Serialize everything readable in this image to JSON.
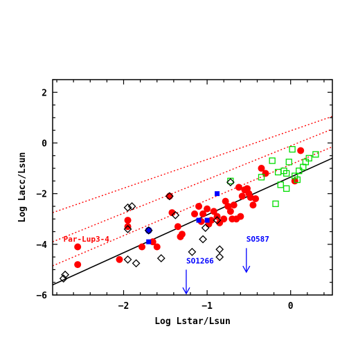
{
  "chart_data": {
    "type": "scatter",
    "title": "",
    "xlabel": "Log Lstar/Lsun",
    "ylabel": "Log Lacc/Lsun",
    "xlim": [
      -2.85,
      0.5
    ],
    "ylim": [
      -6,
      2.5
    ],
    "x_ticks": [
      -2,
      -1,
      0
    ],
    "y_ticks": [
      -6,
      -4,
      -2,
      0,
      2
    ],
    "x_tick_labels": [
      "−2",
      "−1",
      "0"
    ],
    "y_tick_labels": [
      "−6",
      "−4",
      "−2",
      "0",
      "2"
    ],
    "grid": false,
    "colors": {
      "red_filled": "#ff0000",
      "blue_square": "#0000ff",
      "green_open": "#00dd00",
      "black_diamond": "#000000",
      "fit_line": "#000000",
      "dotted": "#ff0000",
      "annotation_red": "#ff0000",
      "annotation_blue": "#0000ff"
    },
    "lines": [
      {
        "style": "solid",
        "points": [
          [
            -2.85,
            -5.6
          ],
          [
            0.5,
            -0.6
          ]
        ]
      },
      {
        "style": "dotted",
        "points": [
          [
            -2.85,
            -4.85
          ],
          [
            0.5,
            -0.15
          ]
        ]
      },
      {
        "style": "dotted",
        "points": [
          [
            -2.85,
            -3.9
          ],
          [
            0.5,
            0.55
          ]
        ]
      },
      {
        "style": "dotted",
        "points": [
          [
            -2.85,
            -2.75
          ],
          [
            0.5,
            1.05
          ]
        ]
      }
    ],
    "series": [
      {
        "marker": "filled-circle",
        "color": "#ff0000",
        "points": [
          [
            -2.55,
            -4.1
          ],
          [
            -2.55,
            -4.8
          ],
          [
            -2.05,
            -4.6
          ],
          [
            -1.95,
            -3.05
          ],
          [
            -1.95,
            -3.3
          ],
          [
            -1.78,
            -4.1
          ],
          [
            -1.65,
            -3.9
          ],
          [
            -1.6,
            -4.1
          ],
          [
            -1.45,
            -2.1
          ],
          [
            -1.35,
            -3.3
          ],
          [
            -1.32,
            -3.7
          ],
          [
            -1.3,
            -3.6
          ],
          [
            -1.15,
            -2.8
          ],
          [
            -1.1,
            -2.5
          ],
          [
            -1.07,
            -3.1
          ],
          [
            -1.05,
            -2.8
          ],
          [
            -1.0,
            -2.6
          ],
          [
            -0.98,
            -3.2
          ],
          [
            -0.95,
            -3.05
          ],
          [
            -0.92,
            -2.7
          ],
          [
            -0.88,
            -2.9
          ],
          [
            -0.85,
            -3.15
          ],
          [
            -0.8,
            -3.0
          ],
          [
            -0.78,
            -2.3
          ],
          [
            -0.75,
            -2.5
          ],
          [
            -0.72,
            -2.7
          ],
          [
            -0.7,
            -3.0
          ],
          [
            -0.68,
            -2.45
          ],
          [
            -0.65,
            -3.0
          ],
          [
            -0.62,
            -1.75
          ],
          [
            -0.6,
            -2.9
          ],
          [
            -0.55,
            -1.85
          ],
          [
            -0.5,
            -2.0
          ],
          [
            -0.48,
            -2.15
          ],
          [
            -0.45,
            -2.45
          ],
          [
            -0.42,
            -2.2
          ],
          [
            -0.35,
            -1.0
          ],
          [
            -0.3,
            -1.2
          ],
          [
            0.05,
            -1.5
          ],
          [
            0.12,
            -0.3
          ],
          [
            -0.58,
            -2.1
          ],
          [
            -0.52,
            -1.8
          ],
          [
            -1.42,
            -2.75
          ]
        ]
      },
      {
        "marker": "filled-square",
        "color": "#0000ff",
        "points": [
          [
            -1.7,
            -3.9
          ],
          [
            -1.1,
            -3.05
          ],
          [
            -0.88,
            -2.0
          ],
          [
            -1.0,
            -3.05
          ]
        ]
      },
      {
        "marker": "filled-circle",
        "color": "#0000ff",
        "points": [
          [
            -1.7,
            -3.45
          ]
        ]
      },
      {
        "marker": "open-square",
        "color": "#00dd00",
        "points": [
          [
            -0.72,
            -1.5
          ],
          [
            -0.35,
            -1.35
          ],
          [
            -0.22,
            -0.7
          ],
          [
            -0.18,
            -2.4
          ],
          [
            -0.15,
            -1.15
          ],
          [
            -0.12,
            -1.65
          ],
          [
            -0.08,
            -1.1
          ],
          [
            -0.05,
            -1.2
          ],
          [
            -0.05,
            -1.8
          ],
          [
            -0.02,
            -0.75
          ],
          [
            0.02,
            -0.25
          ],
          [
            0.08,
            -1.45
          ],
          [
            0.1,
            -1.1
          ],
          [
            0.15,
            -0.95
          ],
          [
            0.18,
            -0.75
          ],
          [
            0.22,
            -0.6
          ],
          [
            0.3,
            -0.45
          ],
          [
            0.05,
            -1.3
          ]
        ]
      },
      {
        "marker": "open-diamond",
        "color": "#000000",
        "points": [
          [
            -2.7,
            -5.2
          ],
          [
            -2.72,
            -5.35
          ],
          [
            -1.95,
            -2.55
          ],
          [
            -1.9,
            -2.5
          ],
          [
            -1.95,
            -3.4
          ],
          [
            -1.95,
            -4.6
          ],
          [
            -1.85,
            -4.75
          ],
          [
            -1.7,
            -3.45
          ],
          [
            -1.55,
            -4.55
          ],
          [
            -1.45,
            -2.1
          ],
          [
            -1.38,
            -2.85
          ],
          [
            -1.18,
            -4.3
          ],
          [
            -1.05,
            -3.8
          ],
          [
            -1.02,
            -3.35
          ],
          [
            -0.85,
            -4.2
          ],
          [
            -0.85,
            -4.5
          ],
          [
            -0.72,
            -1.55
          ],
          [
            -0.88,
            -3.05
          ]
        ]
      }
    ],
    "annotations": [
      {
        "text": "Par-Lup3-4",
        "x": -2.72,
        "y": -3.9,
        "color": "#ff0000"
      },
      {
        "text": "SO1266",
        "x": -1.25,
        "y": -4.75,
        "color": "#0000ff"
      },
      {
        "text": "SO587",
        "x": -0.53,
        "y": -3.9,
        "color": "#0000ff"
      }
    ],
    "arrows": [
      {
        "name": "SO1266",
        "x": -1.25,
        "y_from": -5.0,
        "y_to": -5.95,
        "color": "#0000ff"
      },
      {
        "name": "SO587",
        "x": -0.53,
        "y_from": -4.15,
        "y_to": -5.1,
        "color": "#0000ff"
      }
    ]
  }
}
